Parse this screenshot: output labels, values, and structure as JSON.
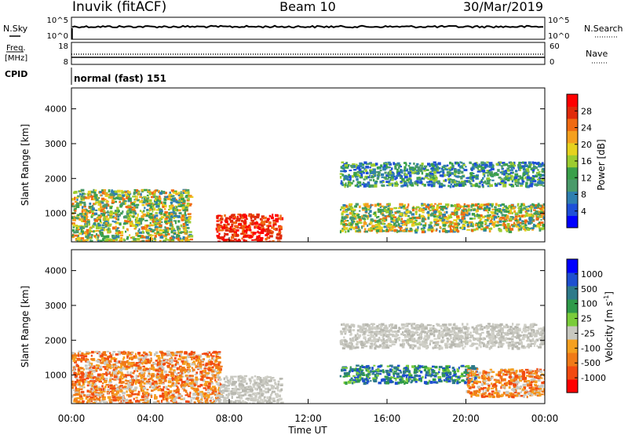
{
  "header": {
    "station": "Inuvik (fitACF)",
    "beam": "Beam 10",
    "date": "30/Mar/2019"
  },
  "top_panels": {
    "nsky_label": "N.Sky",
    "nsky_ticks": [
      "10^5",
      "10^0"
    ],
    "nsearch_label": "N.Search",
    "nsearch_ticks": [
      "10^5",
      "10^0"
    ],
    "freq_label_1": "Freq.",
    "freq_label_2": "[MHz]",
    "freq_ticks": [
      "18",
      "8"
    ],
    "nave_label": "Nave",
    "nave_ticks": [
      "60",
      "0"
    ],
    "cpid_label": "CPID",
    "cpid_value": "normal (fast) 151"
  },
  "chart_data": [
    {
      "type": "heatmap",
      "name": "power",
      "ylabel": "Slant Range [km]",
      "yticks": [
        "4000",
        "3000",
        "2000",
        "1000"
      ],
      "ytick_values": [
        4000,
        3000,
        2000,
        1000
      ],
      "ylim": [
        180,
        4600
      ],
      "xlim_hours": [
        0,
        24
      ],
      "colorbar": {
        "label": "Power [dB]",
        "tick_labels": [
          "28",
          "24",
          "20",
          "16",
          "12",
          "8",
          "4"
        ],
        "colors": [
          "#0000ff",
          "#1e4fd8",
          "#2f7fb0",
          "#4a9a6a",
          "#3aa04a",
          "#9ccc30",
          "#e6d21e",
          "#f5a01e",
          "#f06a12",
          "#e02a0a",
          "#ff0000"
        ]
      },
      "features": [
        {
          "from_h": 0.0,
          "to_h": 6.0,
          "range_km": [
            180,
            1700
          ],
          "level": "12-24 dB"
        },
        {
          "from_h": 7.3,
          "to_h": 10.6,
          "range_km": [
            180,
            1000
          ],
          "level": "24-30 dB"
        },
        {
          "from_h": 13.6,
          "to_h": 24.0,
          "range_km": [
            500,
            1300
          ],
          "level": "12-24 dB"
        },
        {
          "from_h": 13.6,
          "to_h": 24.0,
          "range_km": [
            1800,
            2500
          ],
          "level": "4-16 dB"
        }
      ]
    },
    {
      "type": "heatmap",
      "name": "velocity",
      "ylabel": "Slant Range [km]",
      "yticks": [
        "4000",
        "3000",
        "2000",
        "1000"
      ],
      "ytick_values": [
        4000,
        3000,
        2000,
        1000
      ],
      "ylim": [
        180,
        4600
      ],
      "xlim_hours": [
        0,
        24
      ],
      "colorbar": {
        "label": "Velocity [m s^-1]",
        "tick_labels": [
          "1000",
          "500",
          "100",
          "25",
          "-25",
          "-100",
          "-500",
          "-1000"
        ],
        "colors": [
          "#ff0000",
          "#f24a10",
          "#f07a18",
          "#f5a020",
          "#c8c8c0",
          "#7acc3a",
          "#2f9a4a",
          "#2e7a8a",
          "#1e4fd0",
          "#0000ff"
        ]
      },
      "features": [
        {
          "from_h": 0.0,
          "to_h": 7.5,
          "range_km": [
            180,
            1700
          ],
          "level": "-100 to -500 m/s"
        },
        {
          "from_h": 7.3,
          "to_h": 10.6,
          "range_km": [
            180,
            1000
          ],
          "level": "-25 to 25 m/s"
        },
        {
          "from_h": 13.6,
          "to_h": 20.5,
          "range_km": [
            800,
            1300
          ],
          "level": "25 to 500 m/s"
        },
        {
          "from_h": 13.6,
          "to_h": 24.0,
          "range_km": [
            1800,
            2500
          ],
          "level": "-25 to 25 m/s"
        },
        {
          "from_h": 20.0,
          "to_h": 24.0,
          "range_km": [
            400,
            1200
          ],
          "level": "-100 to -500 m/s"
        }
      ]
    }
  ],
  "x_axis": {
    "tick_labels": [
      "00:00",
      "04:00",
      "08:00",
      "12:00",
      "16:00",
      "20:00",
      "00:00"
    ],
    "tick_hours": [
      0,
      4,
      8,
      12,
      16,
      20,
      24
    ],
    "label": "Time UT"
  }
}
